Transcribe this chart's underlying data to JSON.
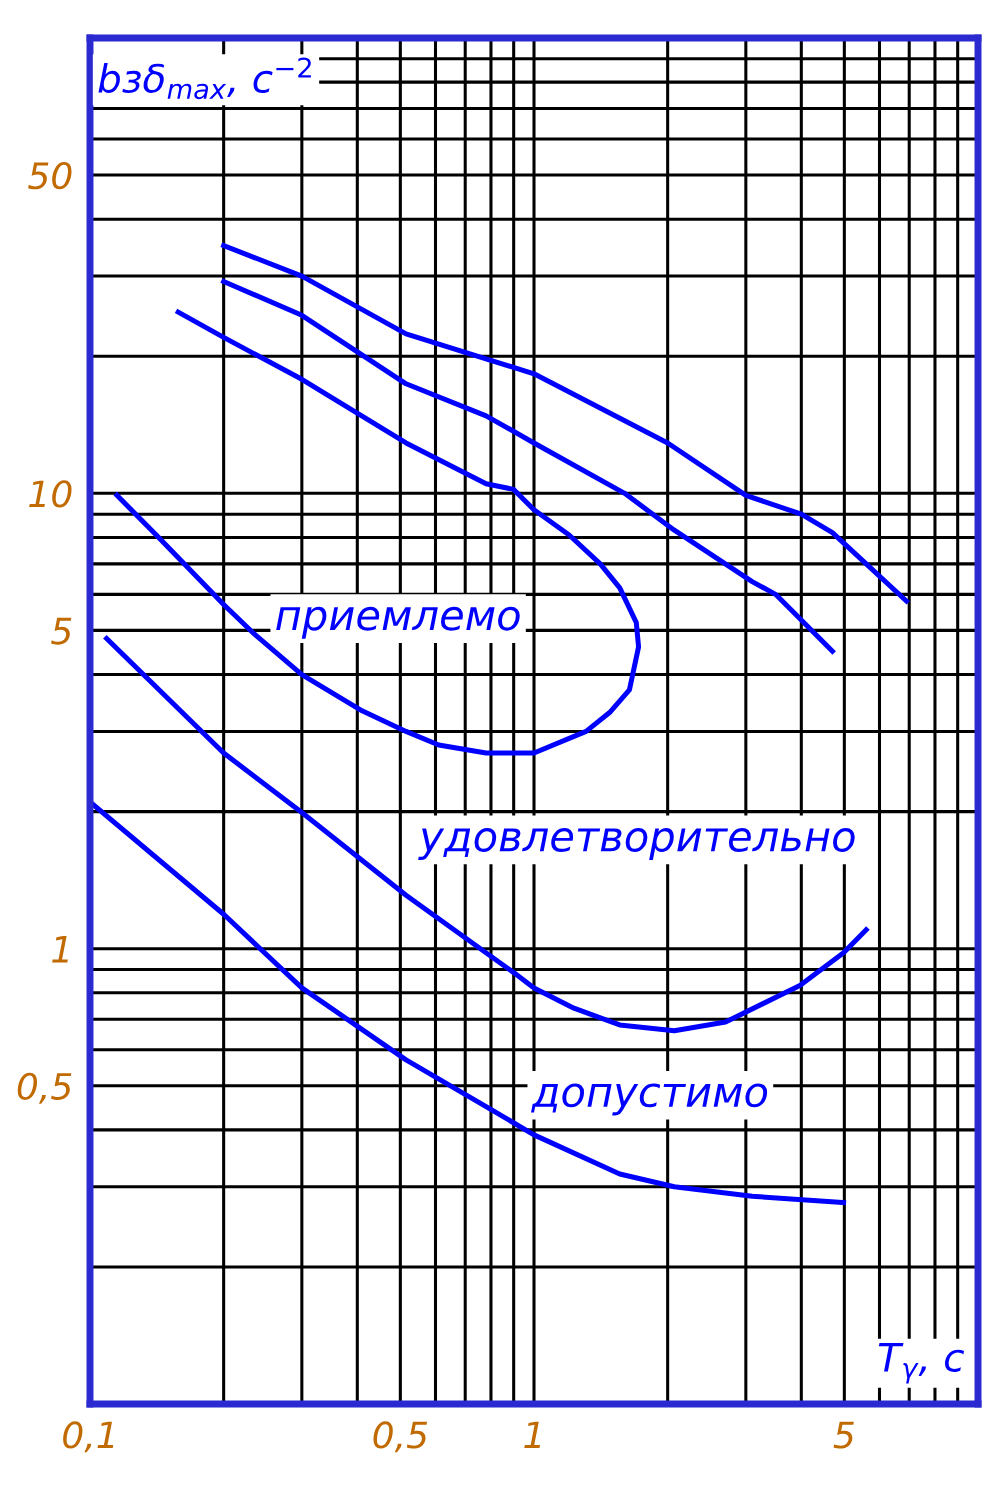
{
  "chart_data": {
    "type": "line",
    "log": "xy",
    "xlabel": "T$_{γ}$, с",
    "ylabel": "bзδ$_{max}$, с$^{−2}$",
    "xlim": [
      0.1,
      10
    ],
    "ylim": [
      0.1,
      100
    ],
    "xticks": [
      {
        "value": 0.1,
        "label": "0,1"
      },
      {
        "value": 0.5,
        "label": "0,5"
      },
      1,
      5
    ],
    "yticks": [
      {
        "value": 0.5,
        "label": "0,5"
      },
      1,
      5,
      10,
      50
    ],
    "grid": true,
    "legend": false,
    "marker": "none",
    "line_style": "solid",
    "annotations": [
      "приемлемо",
      "удовлетворительно",
      "допустимо"
    ],
    "series": [
      {
        "color": "#0000ff",
        "x": [
          0.2,
          0.3,
          0.515,
          1,
          2,
          3,
          4,
          4.7,
          5.6,
          6.9
        ],
        "values": [
          35,
          30,
          22.4,
          18.3,
          12.9,
          9.9,
          9.0,
          8.2,
          7.0,
          5.8
        ]
      },
      {
        "color": "#0000ff",
        "x": [
          0.2,
          0.3,
          0.515,
          0.78,
          1,
          1.6,
          2.07,
          3.1,
          3.5,
          4.7
        ],
        "values": [
          29.2,
          24.6,
          17.4,
          14.8,
          12.9,
          10,
          8.3,
          6.4,
          6.0,
          4.5
        ]
      },
      {
        "color": "#0000ff",
        "x": [
          0.158,
          0.2,
          0.3,
          0.515,
          0.78,
          0.9,
          1,
          1.2,
          1.41,
          1.56,
          1.7,
          1.72,
          1.64,
          1.48,
          1.31,
          1,
          0.78,
          0.61,
          0.515,
          0.41,
          0.3,
          0.235,
          0.2,
          0.141,
          0.115
        ],
        "values": [
          25,
          22,
          17.8,
          12.9,
          10.5,
          10.2,
          9.2,
          8.1,
          7.0,
          6.2,
          5.2,
          4.6,
          3.7,
          3.3,
          3.0,
          2.69,
          2.69,
          2.8,
          3.0,
          3.33,
          4.0,
          4.9,
          5.7,
          8.1,
          9.9
        ]
      },
      {
        "color": "#0000ff",
        "x": [
          0.109,
          0.2,
          0.3,
          0.515,
          0.9,
          1,
          1.23,
          1.56,
          2.07,
          2.7,
          3.97,
          4.98,
          5.6
        ],
        "values": [
          4.8,
          2.69,
          1.99,
          1.31,
          0.886,
          0.82,
          0.74,
          0.68,
          0.66,
          0.69,
          0.83,
          0.98,
          1.1
        ]
      },
      {
        "color": "#0000ff",
        "x": [
          0.1,
          0.2,
          0.3,
          0.405,
          0.515,
          0.78,
          1,
          1.56,
          2.07,
          3.1,
          4.98
        ],
        "values": [
          2.1,
          1.19,
          0.82,
          0.67,
          0.57,
          0.45,
          0.39,
          0.32,
          0.3,
          0.286,
          0.277
        ]
      }
    ]
  }
}
